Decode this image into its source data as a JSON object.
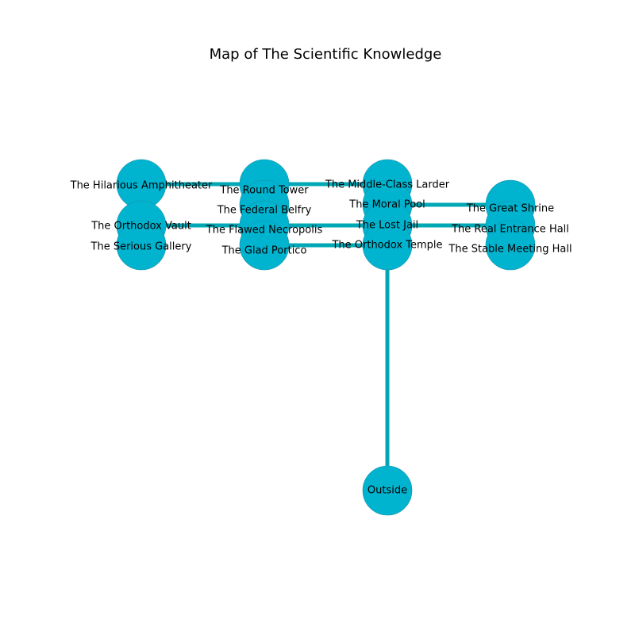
{
  "title": "Map of The Scientific Knowledge",
  "colors": {
    "node": "#00b4d0",
    "edge": "#00a8b5"
  },
  "nodes": [
    {
      "id": "hilarious",
      "label": "The Hilarious Amphitheater"
    },
    {
      "id": "vault",
      "label": "The Orthodox Vault"
    },
    {
      "id": "gallery",
      "label": "The Serious Gallery"
    },
    {
      "id": "round",
      "label": "The Round Tower"
    },
    {
      "id": "belfry",
      "label": "The Federal Belfry"
    },
    {
      "id": "necropolis",
      "label": "The Flawed Necropolis"
    },
    {
      "id": "portico",
      "label": "The Glad Portico"
    },
    {
      "id": "larder",
      "label": "The Middle-Class Larder"
    },
    {
      "id": "pool",
      "label": "The Moral Pool"
    },
    {
      "id": "jail",
      "label": "The Lost Jail"
    },
    {
      "id": "temple",
      "label": "The Orthodox Temple"
    },
    {
      "id": "shrine",
      "label": "The Great Shrine"
    },
    {
      "id": "entrance",
      "label": "The Real Entrance Hall"
    },
    {
      "id": "meeting",
      "label": "The Stable Meeting Hall"
    },
    {
      "id": "outside",
      "label": "Outside"
    }
  ],
  "edges": [
    [
      "hilarious",
      "round"
    ],
    [
      "round",
      "larder"
    ],
    [
      "vault",
      "necropolis"
    ],
    [
      "necropolis",
      "jail"
    ],
    [
      "portico",
      "temple"
    ],
    [
      "pool",
      "shrine"
    ],
    [
      "jail",
      "entrance"
    ],
    [
      "temple",
      "outside"
    ]
  ]
}
